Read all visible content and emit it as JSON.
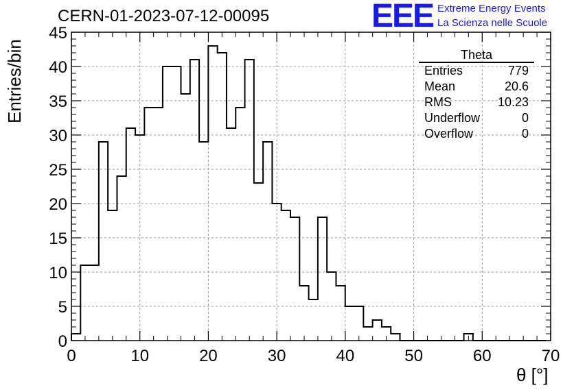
{
  "header": {
    "title": "CERN-01-2023-07-12-00095",
    "logo_text": "EEE",
    "logo_line1": "Extreme Energy Events",
    "logo_line2": "La Scienza nelle Scuole"
  },
  "stats_box": {
    "name": "Theta",
    "rows": [
      {
        "label": "Entries",
        "value": "779"
      },
      {
        "label": "Mean",
        "value": "20.6"
      },
      {
        "label": "RMS",
        "value": "10.23"
      },
      {
        "label": "Underflow",
        "value": "0"
      },
      {
        "label": "Overflow",
        "value": "0"
      }
    ]
  },
  "chart_data": {
    "type": "bar",
    "style": "step-histogram",
    "title": "CERN-01-2023-07-12-00095",
    "xlabel": "θ [°]",
    "ylabel": "Entries/bin",
    "xlim": [
      0,
      70
    ],
    "ylim": [
      0,
      45
    ],
    "grid": true,
    "x_ticks": [
      0,
      10,
      20,
      30,
      40,
      50,
      60,
      70
    ],
    "y_ticks": [
      0,
      5,
      10,
      15,
      20,
      25,
      30,
      35,
      40,
      45
    ],
    "bin_width": 1.333,
    "bin_edges_start": 0,
    "values": [
      1,
      11,
      11,
      29,
      19,
      24,
      31,
      30,
      34,
      34,
      40,
      40,
      36,
      41,
      29,
      43,
      42,
      31,
      34,
      41,
      23,
      29,
      20,
      19,
      18,
      8,
      6,
      18,
      10,
      8,
      5,
      5,
      2,
      3,
      2,
      1,
      0,
      0,
      0,
      0,
      0,
      0,
      0,
      1,
      0,
      0,
      0,
      0,
      0,
      0,
      0,
      0
    ]
  }
}
